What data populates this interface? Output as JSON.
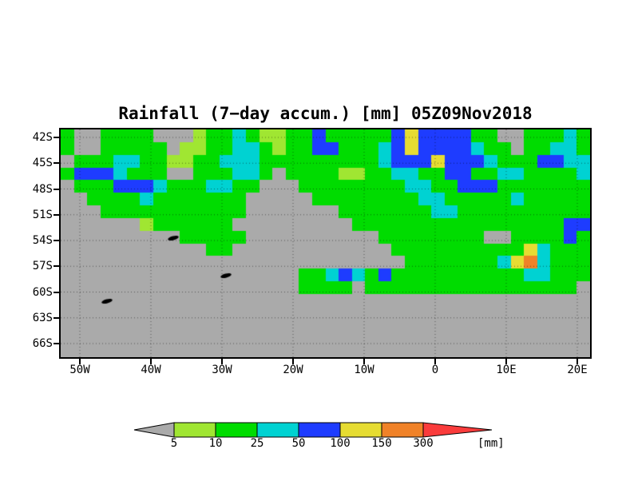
{
  "title": "Rainfall (7−day accum.) [mm] 05Z09Nov2018",
  "axes": {
    "lat_ticks": [
      "42S",
      "45S",
      "48S",
      "51S",
      "54S",
      "57S",
      "60S",
      "63S",
      "66S"
    ],
    "lon_ticks": [
      "50W",
      "40W",
      "30W",
      "20W",
      "10W",
      "0",
      "10E",
      "20E"
    ]
  },
  "colorbar": {
    "labels": [
      "5",
      "10",
      "25",
      "50",
      "100",
      "150",
      "300"
    ],
    "unit": "[mm]",
    "colors": [
      "#aaaaaa",
      "#a0e632",
      "#00dc00",
      "#00d2d2",
      "#1e3cff",
      "#e6dc32",
      "#f08228",
      "#fa3c3c"
    ]
  },
  "chart_data": {
    "type": "heatmap",
    "title": "Rainfall (7−day accum.) [mm] 05Z09Nov2018",
    "valid_time": "05Z09Nov2018",
    "units": "mm",
    "lat_extent_deg": [
      -41.1,
      -67.6
    ],
    "lon_extent_deg": [
      -52.7,
      21.8
    ],
    "lat_tick_values_deg": [
      -42,
      -45,
      -48,
      -51,
      -54,
      -57,
      -60,
      -63,
      -66
    ],
    "lon_tick_values_deg": [
      -50,
      -40,
      -30,
      -20,
      -10,
      0,
      10,
      20
    ],
    "level_boundaries_mm": [
      5,
      10,
      25,
      50,
      100,
      150,
      300
    ],
    "bin_legend": [
      "<5",
      "5-10",
      "10-25",
      "25-50",
      "50-100",
      "100-150",
      "150-300",
      ">300"
    ],
    "palette": [
      "#aaaaaa",
      "#a0e632",
      "#00dc00",
      "#00d2d2",
      "#1e3cff",
      "#e6dc32",
      "#f08228",
      "#fa3c3c"
    ],
    "land_color": "#000000",
    "grid_note": "Coarse 40x18 approximation of the shaded rainfall field, rows north (42S) to south (68S), cols west (53W) to east (22E). Digits 0-7 index the rainfall bins in bin_legend; 8 = island/land point.",
    "grid": [
      "2002222000122321122422222454444220022232",
      "2002222201122332122442223454444322022332",
      "0222332211223332222222223444544432224433",
      "2444322200222332022221122332244223322223",
      "0222444322233220002222222233224442222222",
      "0022223222222200000222222223322222322222",
      "0002222222222200000002222222332222222222",
      "0000001222222000000000222222222222222244",
      "0000000082222200000000002222222200222242",
      "0000000000022000000000000222222222253222",
      "0000000000000000000000000022222223563222",
      "0000000000008000002234324222222222233222",
      "0000000000000000002222022222222222222220",
      "0008000000000000000000000000000000000000",
      "0000000000000000000000000000000000000000",
      "0000000000000000000000000000000000000000",
      "0000000000000000000000000000000000000000",
      "0000000000000000000000000000000000000000"
    ]
  }
}
